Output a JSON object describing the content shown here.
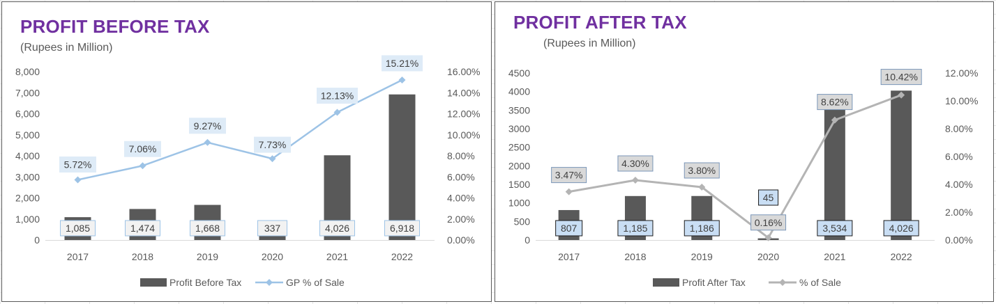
{
  "chart_data": [
    {
      "type": "bar",
      "title": "PROFIT BEFORE TAX",
      "subtitle": "(Rupees in Million)",
      "categories": [
        "2017",
        "2018",
        "2019",
        "2020",
        "2021",
        "2022"
      ],
      "series": [
        {
          "name": "Profit Before Tax",
          "kind": "bar",
          "axis": "left",
          "values": [
            1085,
            1474,
            1668,
            337,
            4026,
            6918
          ],
          "labels": [
            "1,085",
            "1,474",
            "1,668",
            "337",
            "4,026",
            "6,918"
          ],
          "color": "#595959"
        },
        {
          "name": "GP % of Sale",
          "kind": "line",
          "axis": "right",
          "values": [
            5.72,
            7.06,
            9.27,
            7.73,
            12.13,
            15.21
          ],
          "labels": [
            "5.72%",
            "7.06%",
            "9.27%",
            "7.73%",
            "12.13%",
            "15.21%"
          ],
          "color": "#9dc3e6"
        }
      ],
      "ylim": [
        0,
        8000
      ],
      "yticks": [
        "0",
        "1,000",
        "2,000",
        "3,000",
        "4,000",
        "5,000",
        "6,000",
        "7,000",
        "8,000"
      ],
      "y2lim": [
        0,
        16
      ],
      "y2ticks": [
        "0.00%",
        "2.00%",
        "4.00%",
        "6.00%",
        "8.00%",
        "10.00%",
        "12.00%",
        "14.00%",
        "16.00%"
      ],
      "legend_position": "bottom",
      "grid": "horizontal"
    },
    {
      "type": "bar",
      "title": "PROFIT AFTER TAX",
      "subtitle": "(Rupees in Million)",
      "categories": [
        "2017",
        "2018",
        "2019",
        "2020",
        "2021",
        "2022"
      ],
      "series": [
        {
          "name": "Profit After Tax",
          "kind": "bar",
          "axis": "left",
          "values": [
            807,
            1185,
            1186,
            45,
            3534,
            4026
          ],
          "labels": [
            "807",
            "1,185",
            "1,186",
            "45",
            "3,534",
            "4,026"
          ],
          "color": "#595959"
        },
        {
          "name": "% of Sale",
          "kind": "line",
          "axis": "right",
          "values": [
            3.47,
            4.3,
            3.8,
            0.16,
            8.62,
            10.42
          ],
          "labels": [
            "3.47%",
            "4.30%",
            "3.80%",
            "0.16%",
            "8.62%",
            "10.42%"
          ],
          "color": "#b4b4b4"
        }
      ],
      "ylim": [
        0,
        4500
      ],
      "yticks": [
        "0",
        "500",
        "1000",
        "1500",
        "2000",
        "2500",
        "3000",
        "3500",
        "4000",
        "4500"
      ],
      "y2lim": [
        0,
        12
      ],
      "y2ticks": [
        "0.00%",
        "2.00%",
        "4.00%",
        "6.00%",
        "8.00%",
        "10.00%",
        "12.00%"
      ],
      "legend_position": "bottom",
      "grid": "horizontal"
    }
  ]
}
